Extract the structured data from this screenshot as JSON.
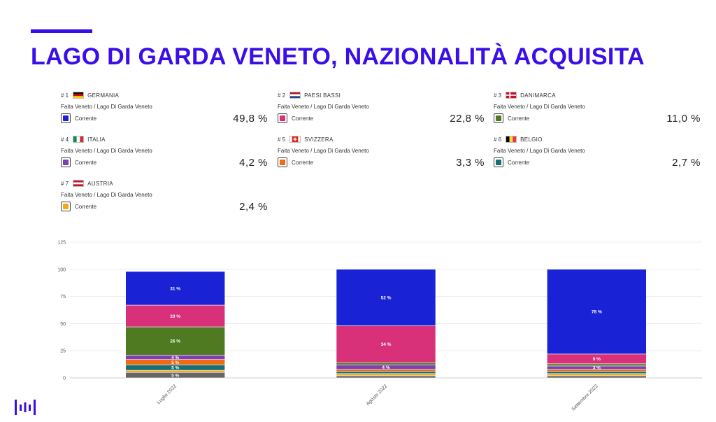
{
  "page": {
    "title": "LAGO DI GARDA VENETO, NAZIONALITÀ ACQUISITA",
    "accent_color": "#3a0ee8"
  },
  "kpis": [
    {
      "rank": "# 1",
      "country": "GERMANIA",
      "flag": "germany-flag",
      "source": "Faita Veneto / Lago Di Garda Veneto",
      "series": "Corrente",
      "value": "49,8 %",
      "color": "#1a22d6"
    },
    {
      "rank": "# 2",
      "country": "PAESI BASSI",
      "flag": "netherlands-flag",
      "source": "Faita Veneto / Lago Di Garda Veneto",
      "series": "Corrente",
      "value": "22,8 %",
      "color": "#d8317a"
    },
    {
      "rank": "# 3",
      "country": "DANIMARCA",
      "flag": "denmark-flag",
      "source": "Faita Veneto / Lago Di Garda Veneto",
      "series": "Corrente",
      "value": "11,0 %",
      "color": "#4f7a21"
    },
    {
      "rank": "# 4",
      "country": "ITALIA",
      "flag": "italy-flag",
      "source": "Faita Veneto / Lago Di Garda Veneto",
      "series": "Corrente",
      "value": "4,2 %",
      "color": "#7e3fb0"
    },
    {
      "rank": "# 5",
      "country": "SVIZZERA",
      "flag": "switzerland-flag",
      "source": "Faita Veneto / Lago Di Garda Veneto",
      "series": "Corrente",
      "value": "3,3 %",
      "color": "#ef6a11"
    },
    {
      "rank": "# 6",
      "country": "BELGIO",
      "flag": "belgium-flag",
      "source": "Faita Veneto / Lago Di Garda Veneto",
      "series": "Corrente",
      "value": "2,7 %",
      "color": "#15707a"
    },
    {
      "rank": "# 7",
      "country": "AUSTRIA",
      "flag": "austria-flag",
      "source": "Faita Veneto / Lago Di Garda Veneto",
      "series": "Corrente",
      "value": "2,4 %",
      "color": "#f3a81b"
    }
  ],
  "chart_data": {
    "type": "bar",
    "stacked": true,
    "categories": [
      "Luglio 2022",
      "Agosto 2022",
      "Settembre 2022"
    ],
    "ylim": [
      0,
      125
    ],
    "yticks": [
      0,
      25,
      50,
      75,
      100,
      125
    ],
    "grid": true,
    "legend": "none",
    "series": [
      {
        "color": "#666666",
        "values": [
          5,
          2,
          2
        ],
        "labels": [
          "5 %",
          "",
          ""
        ]
      },
      {
        "color": "#f3a81b",
        "values": [
          2,
          2,
          2
        ],
        "labels": [
          "",
          "",
          ""
        ]
      },
      {
        "color": "#15707a",
        "values": [
          5,
          2,
          2
        ],
        "labels": [
          "5 %",
          "",
          ""
        ]
      },
      {
        "color": "#ef6a11",
        "values": [
          5,
          2,
          2
        ],
        "labels": [
          "5 %",
          "",
          ""
        ]
      },
      {
        "color": "#7e3fb0",
        "values": [
          4,
          4,
          3
        ],
        "labels": [
          "4 %",
          "4 %",
          "3 %"
        ]
      },
      {
        "color": "#4f7a21",
        "values": [
          26,
          2,
          2
        ],
        "labels": [
          "26 %",
          "",
          ""
        ]
      },
      {
        "color": "#d8317a",
        "values": [
          20,
          34,
          9
        ],
        "labels": [
          "20 %",
          "34 %",
          "9 %"
        ]
      },
      {
        "color": "#1a22d6",
        "values": [
          31,
          52,
          78
        ],
        "labels": [
          "31 %",
          "52 %",
          "78 %"
        ]
      }
    ]
  }
}
